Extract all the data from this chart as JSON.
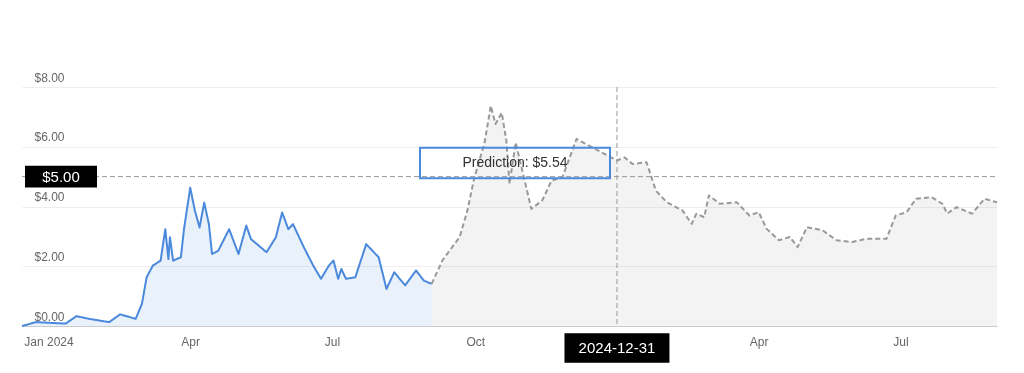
{
  "chart_data": {
    "type": "area",
    "xlim": [
      "2023-12-15",
      "2025-09-01"
    ],
    "ylim": [
      0,
      8
    ],
    "xticks": [
      {
        "value": "2024-01-01",
        "label": "Jan 2024"
      },
      {
        "value": "2024-04-01",
        "label": "Apr"
      },
      {
        "value": "2024-07-01",
        "label": "Jul"
      },
      {
        "value": "2024-10-01",
        "label": "Oct"
      },
      {
        "value": "2025-04-01",
        "label": "Apr"
      },
      {
        "value": "2025-07-01",
        "label": "Jul"
      }
    ],
    "yticks": [
      {
        "value": 0,
        "label": "$0.00"
      },
      {
        "value": 2,
        "label": "$2.00"
      },
      {
        "value": 4,
        "label": "$4.00"
      },
      {
        "value": 6,
        "label": "$6.00"
      },
      {
        "value": 8,
        "label": "$8.00"
      }
    ],
    "grid": "y",
    "series": [
      {
        "color": "#4a89dc",
        "line_style": "solid",
        "x": [
          "2023-12-15",
          "2023-12-24",
          "2024-01-12",
          "2024-01-19",
          "2024-01-27",
          "2024-02-09",
          "2024-02-16",
          "2024-02-26",
          "2024-03-01",
          "2024-03-04",
          "2024-03-08",
          "2024-03-13",
          "2024-03-16",
          "2024-03-18",
          "2024-03-19",
          "2024-03-21",
          "2024-03-26",
          "2024-03-28",
          "2024-04-01",
          "2024-04-04",
          "2024-04-07",
          "2024-04-10",
          "2024-04-13",
          "2024-04-15",
          "2024-04-19",
          "2024-04-26",
          "2024-05-02",
          "2024-05-07",
          "2024-05-10",
          "2024-05-20",
          "2024-05-26",
          "2024-05-30",
          "2024-06-03",
          "2024-06-06",
          "2024-06-13",
          "2024-06-19",
          "2024-06-24",
          "2024-06-29",
          "2024-07-02",
          "2024-07-05",
          "2024-07-07",
          "2024-07-10",
          "2024-07-16",
          "2024-07-23",
          "2024-07-31",
          "2024-08-05",
          "2024-08-10",
          "2024-08-17",
          "2024-08-24",
          "2024-08-29",
          "2024-09-03"
        ],
        "values": [
          0,
          0.13,
          0.08,
          0.33,
          0.24,
          0.13,
          0.39,
          0.24,
          0.74,
          1.63,
          2.02,
          2.19,
          3.24,
          2.24,
          2.97,
          2.19,
          2.3,
          3.24,
          4.63,
          3.86,
          3.3,
          4.13,
          3.41,
          2.41,
          2.52,
          3.24,
          2.41,
          3.36,
          2.91,
          2.47,
          2.97,
          3.8,
          3.24,
          3.41,
          2.63,
          2.02,
          1.58,
          2.02,
          2.19,
          1.58,
          1.91,
          1.58,
          1.63,
          2.74,
          2.3,
          1.24,
          1.8,
          1.36,
          1.86,
          1.52,
          1.41
        ]
      },
      {
        "color": "#999999",
        "line_style": "dashed",
        "x": [
          "2024-09-03",
          "2024-09-10",
          "2024-09-21",
          "2024-09-26",
          "2024-09-30",
          "2024-10-07",
          "2024-10-11",
          "2024-10-14",
          "2024-10-18",
          "2024-10-21",
          "2024-10-23",
          "2024-10-27",
          "2024-11-06",
          "2024-11-13",
          "2024-11-19",
          "2024-11-26",
          "2024-12-05",
          "2024-12-31",
          "2025-01-05",
          "2025-01-10",
          "2025-01-19",
          "2025-01-25",
          "2025-02-01",
          "2025-02-11",
          "2025-02-17",
          "2025-02-20",
          "2025-02-25",
          "2025-02-28",
          "2025-03-07",
          "2025-03-18",
          "2025-03-26",
          "2025-04-01",
          "2025-04-06",
          "2025-04-14",
          "2025-04-21",
          "2025-04-26",
          "2025-05-02",
          "2025-05-12",
          "2025-05-21",
          "2025-05-31",
          "2025-06-09",
          "2025-06-22",
          "2025-06-28",
          "2025-07-05",
          "2025-07-11",
          "2025-07-21",
          "2025-07-28",
          "2025-07-31",
          "2025-08-06",
          "2025-08-16",
          "2025-08-24",
          "2025-09-01"
        ],
        "values": [
          1.41,
          2.2,
          2.98,
          3.87,
          4.87,
          6.14,
          7.37,
          6.76,
          7.14,
          6.2,
          4.76,
          6.14,
          3.92,
          4.2,
          4.87,
          4.98,
          6.26,
          5.54,
          5.64,
          5.42,
          5.48,
          4.53,
          4.14,
          3.87,
          3.42,
          3.76,
          3.64,
          4.37,
          4.09,
          4.14,
          3.7,
          3.81,
          3.26,
          2.87,
          2.98,
          2.64,
          3.31,
          3.2,
          2.87,
          2.81,
          2.92,
          2.92,
          3.7,
          3.81,
          4.26,
          4.31,
          4.09,
          3.76,
          3.98,
          3.76,
          4.26,
          4.14
        ]
      }
    ],
    "ref_lines": [
      {
        "axis": "y",
        "value": 5.0,
        "label": "$5.00",
        "color": "#999999",
        "line_style": "dashed"
      },
      {
        "axis": "x",
        "value": "2024-12-31",
        "label": "2024-12-31",
        "color": "#999999",
        "line_style": "dashed"
      }
    ],
    "annotations": [
      "Prediction: $5.54"
    ]
  }
}
